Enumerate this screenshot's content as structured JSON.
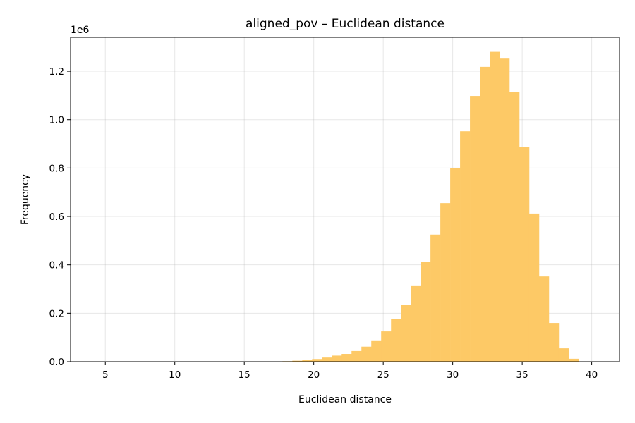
{
  "chart_data": {
    "type": "bar",
    "title": "aligned_pov – Euclidean distance",
    "xlabel": "Euclidean distance",
    "ylabel": "Frequency",
    "y_offset_label": "1e6",
    "xlim": [
      2.5,
      42.0
    ],
    "ylim": [
      0,
      1340000
    ],
    "x_ticks": [
      5,
      10,
      15,
      20,
      25,
      30,
      35,
      40
    ],
    "y_ticks": [
      0,
      200000,
      400000,
      600000,
      800000,
      1000000,
      1200000
    ],
    "y_tick_labels": [
      "0.0",
      "0.2",
      "0.4",
      "0.6",
      "0.8",
      "1.0",
      "1.2"
    ],
    "grid": true,
    "color": "#fdc966",
    "bin_edges": [
      3.55,
      4.26,
      4.97,
      5.68,
      6.39,
      7.1,
      7.81,
      8.52,
      9.23,
      9.94,
      10.65,
      11.36,
      12.07,
      12.78,
      13.49,
      14.2,
      14.91,
      15.62,
      16.33,
      17.04,
      17.75,
      18.46,
      19.17,
      19.88,
      20.59,
      21.3,
      22.01,
      22.72,
      23.43,
      24.14,
      24.85,
      25.56,
      26.27,
      26.98,
      27.69,
      28.4,
      29.11,
      29.82,
      30.53,
      31.24,
      31.95,
      32.66,
      33.37,
      34.08,
      34.79,
      35.5,
      36.21,
      36.92,
      37.63,
      38.34,
      39.05,
      39.76,
      40.47
    ],
    "values": [
      0,
      0,
      0,
      0,
      0,
      0,
      0,
      0,
      0,
      0,
      0,
      0,
      0,
      0,
      0,
      0,
      0,
      0,
      0,
      0,
      2000,
      4000,
      7000,
      11000,
      17000,
      25000,
      32000,
      44000,
      62000,
      88000,
      125000,
      175000,
      235000,
      315000,
      412000,
      525000,
      655000,
      800000,
      952000,
      1098000,
      1218000,
      1280000,
      1255000,
      1113000,
      888000,
      612000,
      352000,
      160000,
      55000,
      12000,
      1000,
      0
    ]
  }
}
